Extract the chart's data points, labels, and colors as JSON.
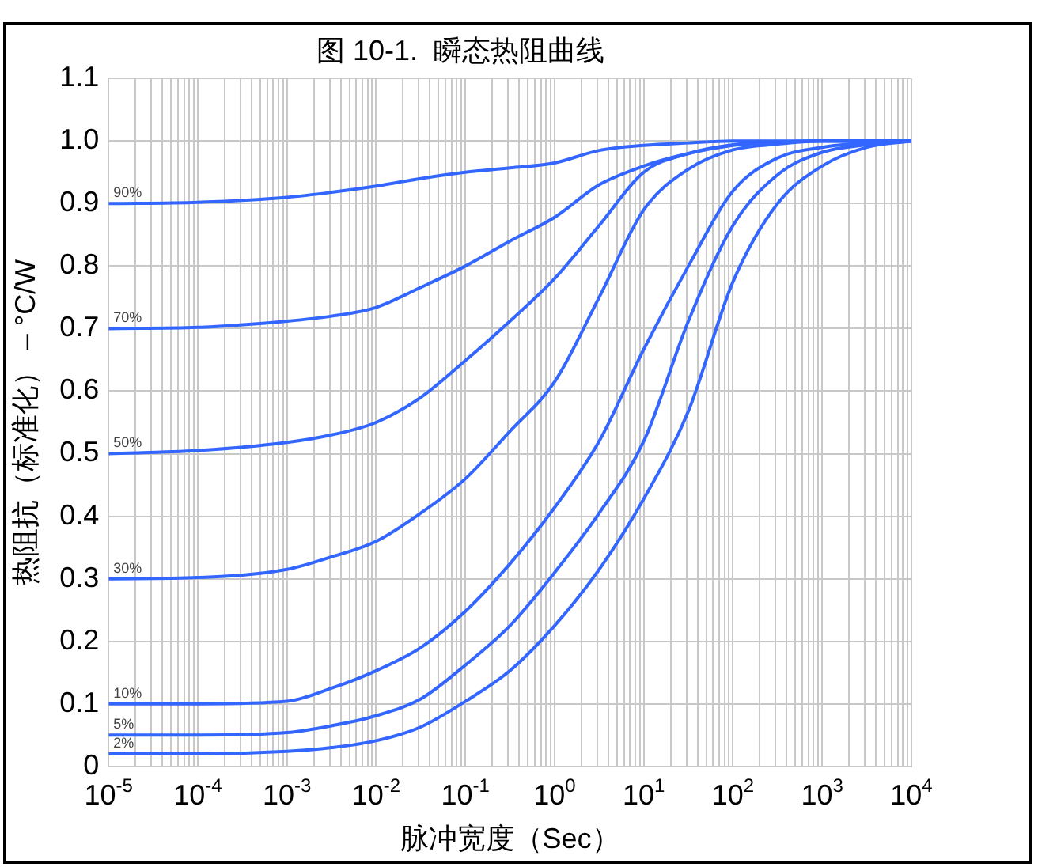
{
  "chart_data": {
    "type": "line",
    "title": "图 10-1.  瞬态热阻曲线",
    "xlabel": "脉冲宽度（Sec）",
    "ylabel": "热阻抗（标准化） – °C/W",
    "log": "x",
    "grid": true,
    "legend": false,
    "marker": "none",
    "line_style": "solid",
    "xlim": [
      1e-05,
      10000
    ],
    "ylim": [
      0,
      1.1
    ],
    "x": [
      1e-05,
      0.0001,
      0.001,
      0.00316,
      0.01,
      0.0316,
      0.1,
      0.316,
      1,
      3.16,
      10,
      31.6,
      100,
      316,
      1000,
      3160,
      10000
    ],
    "xticks": [
      {
        "value": 1e-05,
        "label": "10$^{-5}$"
      },
      {
        "value": 2e-05,
        "label": null
      },
      {
        "value": 3e-05,
        "label": null
      },
      {
        "value": 4e-05,
        "label": null
      },
      {
        "value": 5e-05,
        "label": null
      },
      {
        "value": 6e-05,
        "label": null
      },
      {
        "value": 7e-05,
        "label": null
      },
      {
        "value": 8e-05,
        "label": null
      },
      {
        "value": 9e-05,
        "label": null
      },
      {
        "value": 0.0001,
        "label": "10$^{-4}$"
      },
      {
        "value": 0.0002,
        "label": null
      },
      {
        "value": 0.0003,
        "label": null
      },
      {
        "value": 0.0004,
        "label": null
      },
      {
        "value": 0.0005,
        "label": null
      },
      {
        "value": 0.0006,
        "label": null
      },
      {
        "value": 0.0007,
        "label": null
      },
      {
        "value": 0.0008,
        "label": null
      },
      {
        "value": 0.0009,
        "label": null
      },
      {
        "value": 0.001,
        "label": "10$^{-3}$"
      },
      {
        "value": 0.002,
        "label": null
      },
      {
        "value": 0.003,
        "label": null
      },
      {
        "value": 0.004,
        "label": null
      },
      {
        "value": 0.005,
        "label": null
      },
      {
        "value": 0.006,
        "label": null
      },
      {
        "value": 0.007,
        "label": null
      },
      {
        "value": 0.008,
        "label": null
      },
      {
        "value": 0.009,
        "label": null
      },
      {
        "value": 0.01,
        "label": "10$^{-2}$"
      },
      {
        "value": 0.02,
        "label": null
      },
      {
        "value": 0.03,
        "label": null
      },
      {
        "value": 0.04,
        "label": null
      },
      {
        "value": 0.05,
        "label": null
      },
      {
        "value": 0.06,
        "label": null
      },
      {
        "value": 0.07,
        "label": null
      },
      {
        "value": 0.08,
        "label": null
      },
      {
        "value": 0.09,
        "label": null
      },
      {
        "value": 0.1,
        "label": "10$^{-1}$"
      },
      {
        "value": 0.2,
        "label": null
      },
      {
        "value": 0.3,
        "label": null
      },
      {
        "value": 0.4,
        "label": null
      },
      {
        "value": 0.5,
        "label": null
      },
      {
        "value": 0.6,
        "label": null
      },
      {
        "value": 0.7,
        "label": null
      },
      {
        "value": 0.8,
        "label": null
      },
      {
        "value": 0.9,
        "label": null
      },
      {
        "value": 1,
        "label": "10$^{0}$"
      },
      {
        "value": 2,
        "label": null
      },
      {
        "value": 3,
        "label": null
      },
      {
        "value": 4,
        "label": null
      },
      {
        "value": 5,
        "label": null
      },
      {
        "value": 6,
        "label": null
      },
      {
        "value": 7,
        "label": null
      },
      {
        "value": 8,
        "label": null
      },
      {
        "value": 9,
        "label": null
      },
      {
        "value": 10,
        "label": "10$^{1}$"
      },
      {
        "value": 20,
        "label": null
      },
      {
        "value": 30,
        "label": null
      },
      {
        "value": 40,
        "label": null
      },
      {
        "value": 50,
        "label": null
      },
      {
        "value": 60,
        "label": null
      },
      {
        "value": 70,
        "label": null
      },
      {
        "value": 80,
        "label": null
      },
      {
        "value": 90,
        "label": null
      },
      {
        "value": 100,
        "label": "10$^{2}$"
      },
      {
        "value": 200,
        "label": null
      },
      {
        "value": 300,
        "label": null
      },
      {
        "value": 400,
        "label": null
      },
      {
        "value": 500,
        "label": null
      },
      {
        "value": 600,
        "label": null
      },
      {
        "value": 700,
        "label": null
      },
      {
        "value": 800,
        "label": null
      },
      {
        "value": 900,
        "label": null
      },
      {
        "value": 1000,
        "label": "10$^{3}$"
      },
      {
        "value": 2000,
        "label": null
      },
      {
        "value": 3000,
        "label": null
      },
      {
        "value": 4000,
        "label": null
      },
      {
        "value": 5000,
        "label": null
      },
      {
        "value": 6000,
        "label": null
      },
      {
        "value": 7000,
        "label": null
      },
      {
        "value": 8000,
        "label": null
      },
      {
        "value": 9000,
        "label": null
      },
      {
        "value": 10000,
        "label": "10$^{4}$"
      }
    ],
    "yticks": [
      0,
      0.1,
      0.2,
      0.3,
      0.4,
      0.5,
      0.6,
      0.7,
      0.8,
      0.9,
      {
        "value": 1,
        "label": "1.0"
      },
      1.1
    ],
    "series": [
      {
        "name": "90%",
        "color": "#3366ff",
        "values": [
          0.9,
          0.902,
          0.91,
          0.918,
          0.928,
          0.94,
          0.95,
          0.957,
          0.965,
          0.985,
          0.993,
          0.997,
          1.0,
          1.0,
          1.0,
          1.0,
          1.0
        ]
      },
      {
        "name": "70%",
        "color": "#3366ff",
        "values": [
          0.7,
          0.702,
          0.712,
          0.72,
          0.734,
          0.766,
          0.8,
          0.84,
          0.878,
          0.93,
          0.96,
          0.98,
          0.993,
          0.998,
          1.0,
          1.0,
          1.0
        ]
      },
      {
        "name": "50%",
        "color": "#3366ff",
        "values": [
          0.5,
          0.505,
          0.518,
          0.53,
          0.55,
          0.59,
          0.649,
          0.712,
          0.78,
          0.865,
          0.95,
          0.98,
          0.994,
          0.998,
          1.0,
          1.0,
          1.0
        ]
      },
      {
        "name": "30%",
        "color": "#3366ff",
        "values": [
          0.3,
          0.302,
          0.315,
          0.335,
          0.36,
          0.405,
          0.46,
          0.536,
          0.615,
          0.75,
          0.89,
          0.955,
          0.986,
          0.995,
          1.0,
          1.0,
          1.0
        ]
      },
      {
        "name": "10%",
        "color": "#3366ff",
        "values": [
          0.1,
          0.1,
          0.104,
          0.125,
          0.153,
          0.19,
          0.248,
          0.324,
          0.414,
          0.52,
          0.667,
          0.8,
          0.92,
          0.973,
          0.99,
          0.997,
          1.0
        ]
      },
      {
        "name": "5%",
        "color": "#3366ff",
        "values": [
          0.05,
          0.05,
          0.054,
          0.065,
          0.081,
          0.108,
          0.162,
          0.225,
          0.31,
          0.405,
          0.52,
          0.712,
          0.865,
          0.946,
          0.982,
          0.994,
          1.0
        ]
      },
      {
        "name": "2%",
        "color": "#3366ff",
        "values": [
          0.02,
          0.02,
          0.024,
          0.03,
          0.041,
          0.063,
          0.104,
          0.153,
          0.225,
          0.315,
          0.428,
          0.568,
          0.775,
          0.9,
          0.96,
          0.99,
          1.0
        ]
      }
    ]
  }
}
